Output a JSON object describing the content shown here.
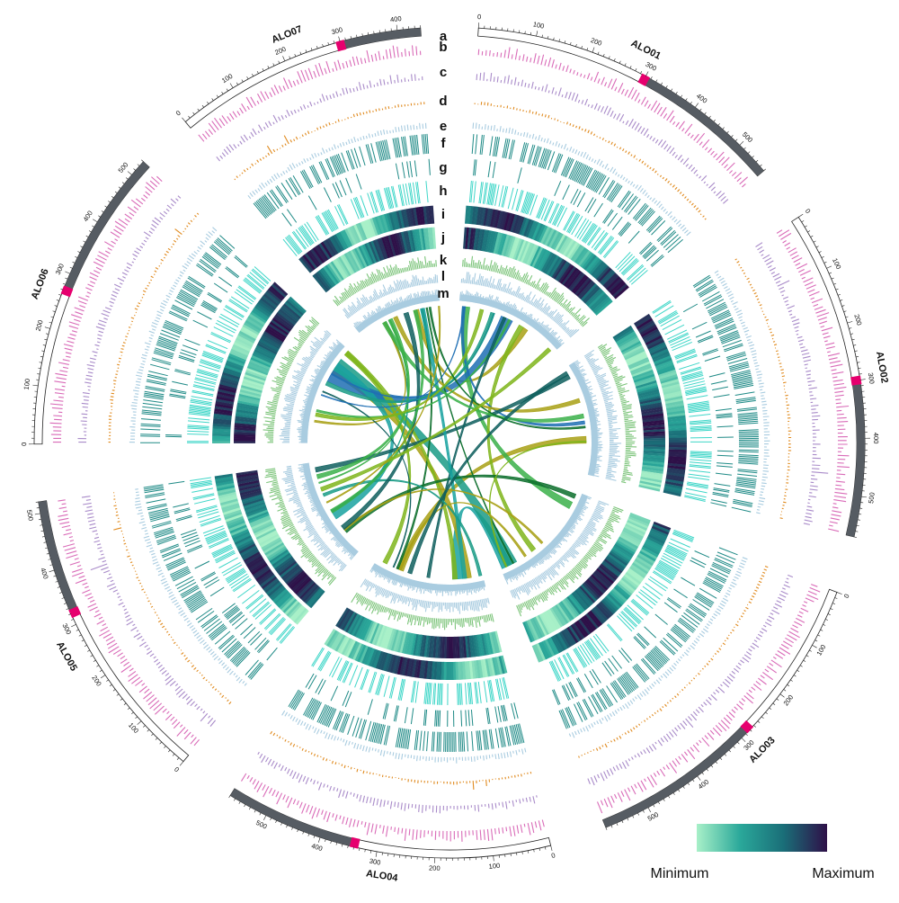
{
  "chromosomes": [
    {
      "name": "ALO01",
      "length": 560,
      "centromere": 300,
      "ticks": [
        0,
        100,
        200,
        300,
        400,
        500
      ]
    },
    {
      "name": "ALO02",
      "length": 570,
      "centromere": 300,
      "ticks": [
        0,
        100,
        200,
        300,
        400,
        500
      ]
    },
    {
      "name": "ALO03",
      "length": 580,
      "centromere": 280,
      "ticks": [
        0,
        100,
        200,
        300,
        400,
        500
      ]
    },
    {
      "name": "ALO04",
      "length": 570,
      "centromere": 340,
      "ticks": [
        0,
        100,
        200,
        300,
        400,
        500
      ]
    },
    {
      "name": "ALO05",
      "length": 520,
      "centromere": 320,
      "ticks": [
        0,
        100,
        200,
        300,
        400,
        500
      ]
    },
    {
      "name": "ALO06",
      "length": 530,
      "centromere": 270,
      "ticks": [
        0,
        100,
        200,
        300,
        400,
        500
      ]
    },
    {
      "name": "ALO07",
      "length": 440,
      "centromere": 300,
      "ticks": [
        0,
        100,
        200,
        300,
        400
      ]
    }
  ],
  "track_letters": [
    "a",
    "b",
    "c",
    "d",
    "e",
    "f",
    "g",
    "h",
    "i",
    "j",
    "k",
    "l",
    "m"
  ],
  "legend": {
    "min_label": "Minimum",
    "max_label": "Maximum",
    "gradient_colors": [
      "#a8f0c8",
      "#2aa89a",
      "#1a6e78",
      "#2e1048"
    ]
  },
  "colors": {
    "ideogram_dark": "#565c63",
    "centromere": "#e6006e",
    "track_b": "#d96bb8",
    "track_c": "#a98bc9",
    "track_d": "#e08a1e",
    "track_e": "#a9cce0",
    "track_f": "#1e8a86",
    "track_g": "#1e8a86",
    "track_h": "#3fd6c8",
    "track_k": "#7cc47a",
    "track_l": "#a9cce0",
    "link_palette": [
      "#1f6fb4",
      "#0f5f5e",
      "#1a9b86",
      "#3bb04a",
      "#7fb51c",
      "#a8a015",
      "#0c6e2c",
      "#19a2a0"
    ]
  }
}
